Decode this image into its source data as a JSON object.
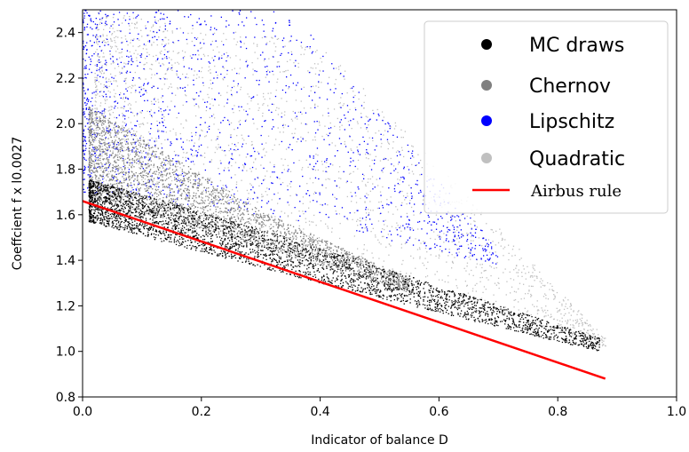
{
  "chart_data": {
    "type": "scatter",
    "xlabel": "Indicator of balance D",
    "ylabel": "Coeffcient f x l0.0027",
    "xlim": [
      0.0,
      1.0
    ],
    "ylim": [
      0.8,
      2.5
    ],
    "x_ticks": [
      "0.0",
      "0.2",
      "0.4",
      "0.6",
      "0.8",
      "1.0"
    ],
    "y_ticks": [
      "0.8",
      "1.0",
      "1.2",
      "1.4",
      "1.6",
      "1.8",
      "2.0",
      "2.2",
      "2.4"
    ],
    "legend_position": "top-right",
    "series": [
      {
        "name": "MC draws",
        "kind": "scatter",
        "color": "#000000",
        "band": {
          "x_range": [
            0.01,
            0.87
          ],
          "lower": [
            [
              0.01,
              1.57
            ],
            [
              0.4,
              1.3
            ],
            [
              0.87,
              1.0
            ]
          ],
          "upper": [
            [
              0.01,
              1.76
            ],
            [
              0.4,
              1.46
            ],
            [
              0.87,
              1.06
            ]
          ]
        }
      },
      {
        "name": "Chernov",
        "kind": "scatter",
        "color": "#808080",
        "band": {
          "x_range": [
            0.01,
            0.55
          ],
          "lower": [
            [
              0.01,
              1.68
            ],
            [
              0.3,
              1.46
            ],
            [
              0.55,
              1.26
            ]
          ],
          "upper": [
            [
              0.01,
              2.08
            ],
            [
              0.3,
              1.62
            ],
            [
              0.55,
              1.32
            ]
          ]
        }
      },
      {
        "name": "Lipschitz",
        "kind": "scatter",
        "color": "#0000ff",
        "band": {
          "x_range": [
            0.0,
            0.7
          ],
          "lower": [
            [
              0.0,
              1.7
            ],
            [
              0.35,
              1.58
            ],
            [
              0.7,
              1.38
            ]
          ],
          "upper": [
            [
              0.0,
              2.5
            ],
            [
              0.35,
              2.5
            ],
            [
              0.7,
              1.45
            ]
          ]
        }
      },
      {
        "name": "Quadratic",
        "kind": "scatter",
        "color": "#c0c0c0",
        "band": {
          "x_range": [
            0.02,
            0.88
          ],
          "lower": [
            [
              0.02,
              1.6
            ],
            [
              0.4,
              1.4
            ],
            [
              0.88,
              1.02
            ]
          ],
          "upper": [
            [
              0.02,
              2.5
            ],
            [
              0.4,
              2.35
            ],
            [
              0.88,
              1.06
            ]
          ]
        }
      },
      {
        "name": "Airbus rule",
        "kind": "line",
        "color": "#ff0000",
        "x": [
          0.0,
          0.88
        ],
        "y": [
          1.66,
          0.88
        ]
      }
    ]
  }
}
